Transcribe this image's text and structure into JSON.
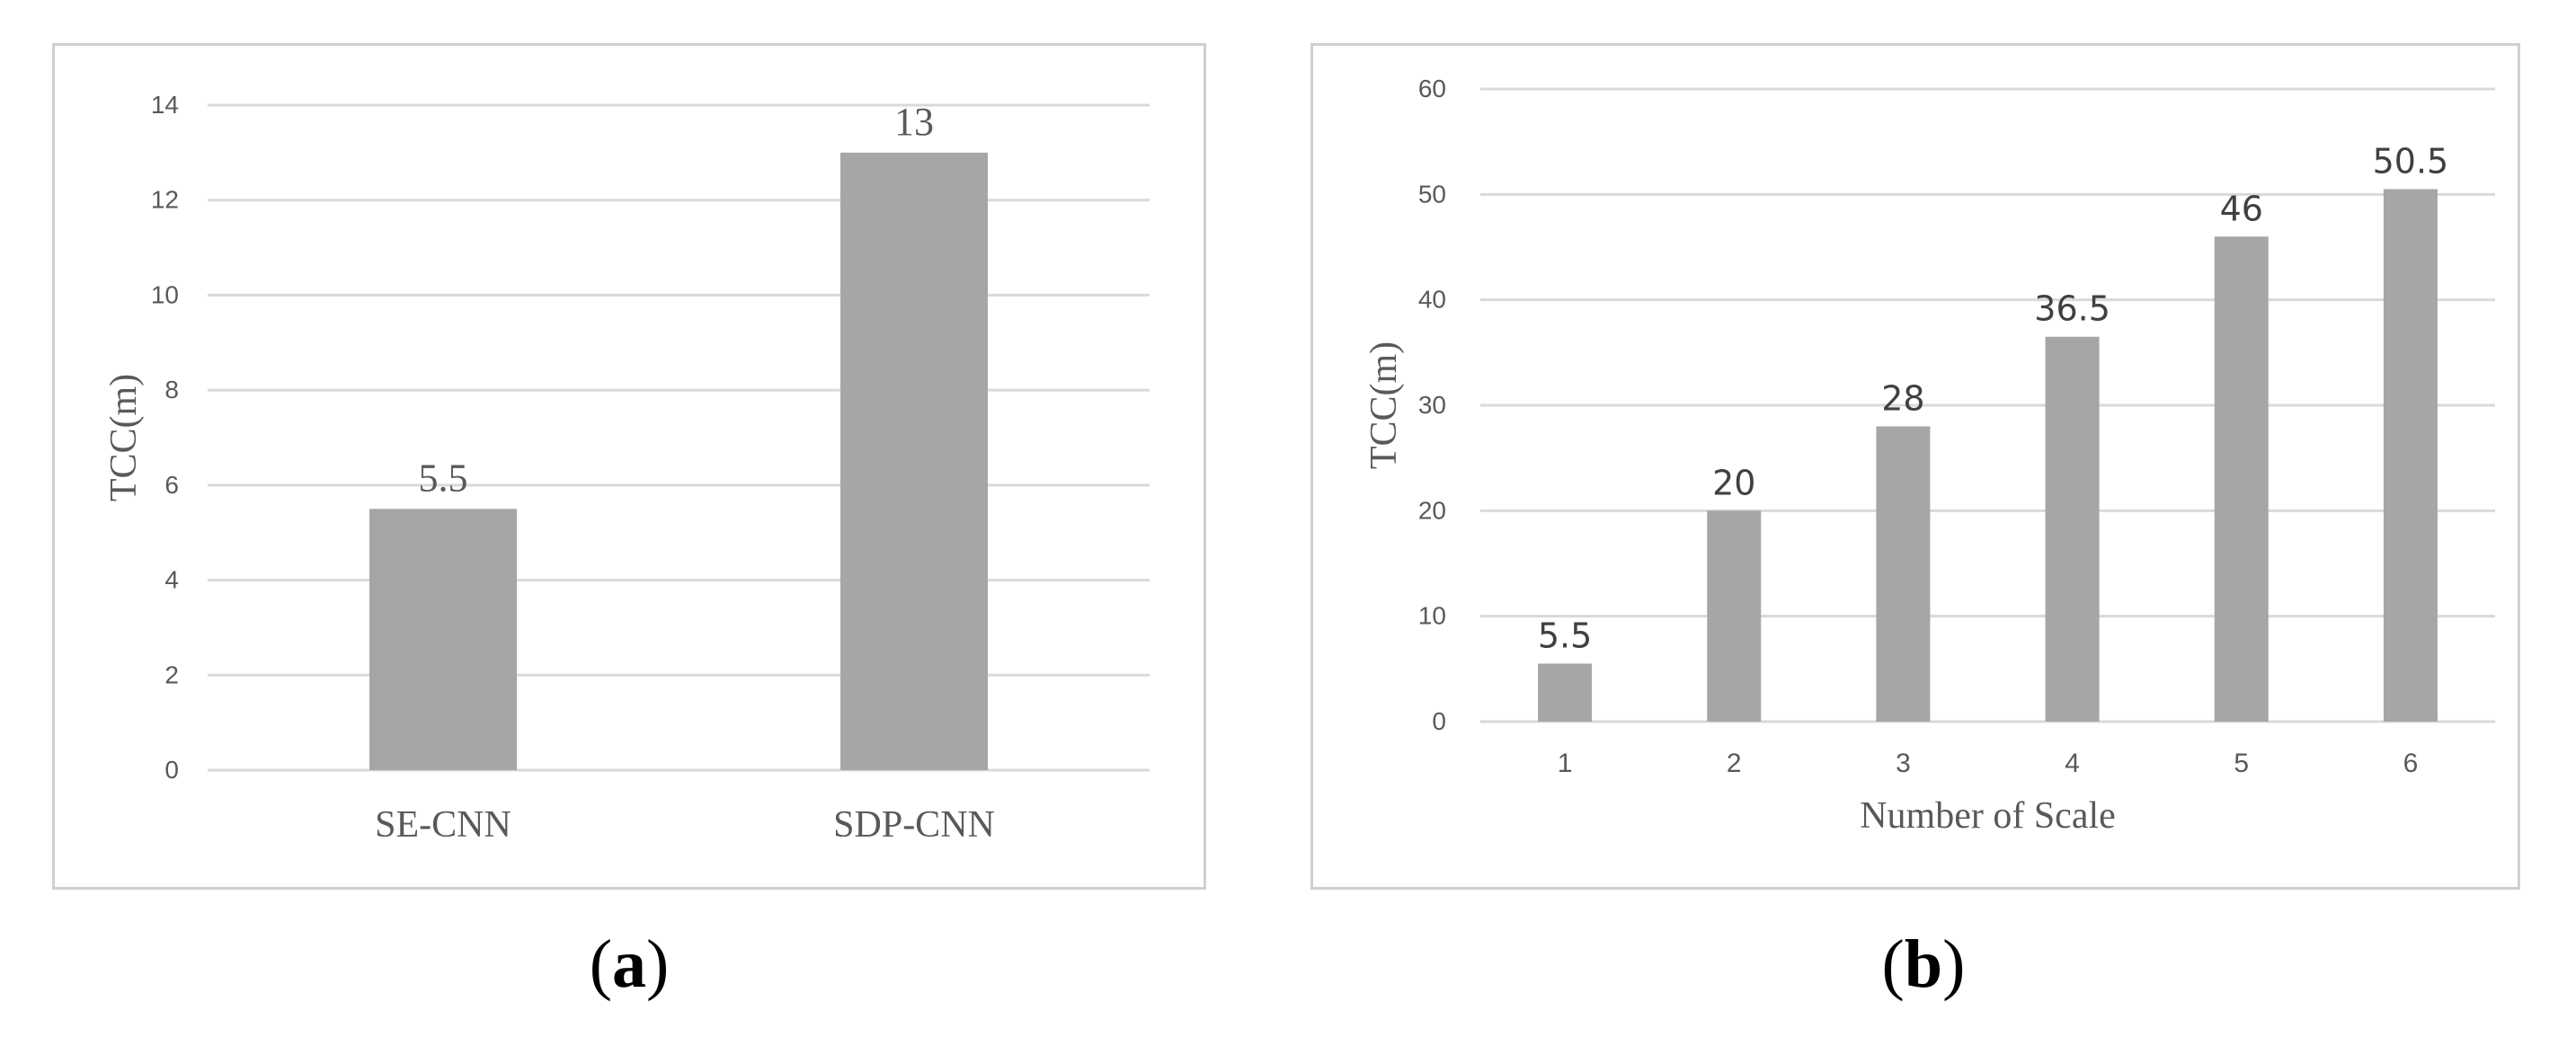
{
  "captions": {
    "a": "a",
    "b": "b"
  },
  "colors": {
    "bar": "#a6a6a6",
    "grid": "#d9d9d9",
    "text": "#595959",
    "border": "#d0d0d0"
  },
  "chart_data": [
    {
      "type": "bar",
      "categories": [
        "SE-CNN",
        "SDP-CNN"
      ],
      "values": [
        5.5,
        13
      ],
      "data_labels": [
        "5.5",
        "13"
      ],
      "title": "",
      "xlabel": "",
      "ylabel": "TCC(m)",
      "ylim": [
        0,
        14
      ],
      "yticks": [
        0,
        2,
        4,
        6,
        8,
        10,
        12,
        14
      ],
      "grid": true
    },
    {
      "type": "bar",
      "categories": [
        "1",
        "2",
        "3",
        "4",
        "5",
        "6"
      ],
      "values": [
        5.5,
        20,
        28,
        36.5,
        46,
        50.5
      ],
      "data_labels": [
        "5.5",
        "20",
        "28",
        "36.5",
        "46",
        "50.5"
      ],
      "title": "",
      "xlabel": "Number of Scale",
      "ylabel": "TCC(m)",
      "ylim": [
        0,
        60
      ],
      "yticks": [
        0,
        10,
        20,
        30,
        40,
        50,
        60
      ],
      "grid": true
    }
  ]
}
